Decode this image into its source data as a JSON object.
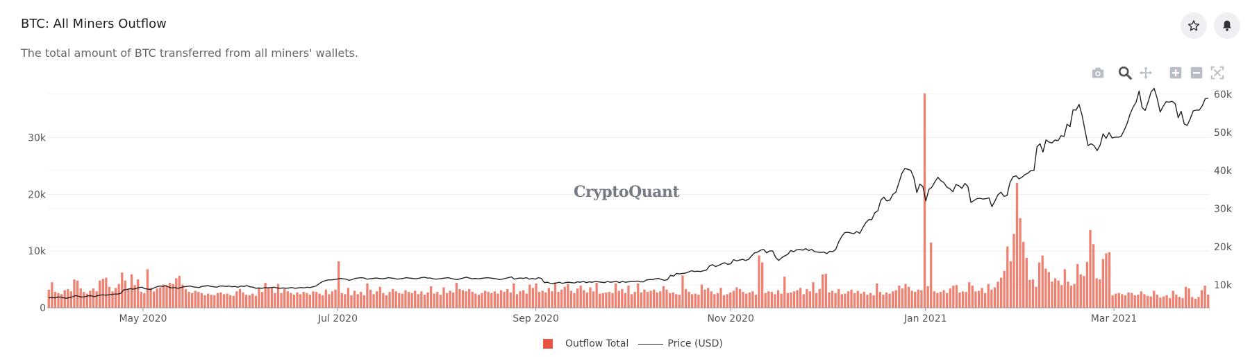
{
  "header": {
    "title": "BTC: All Miners Outflow",
    "subtitle": "The total amount of BTC transferred from all miners' wallets."
  },
  "watermark": "CryptoQuant",
  "actions": {
    "favorite_icon": "star-icon",
    "alert_icon": "bell-icon"
  },
  "modebar": [
    "camera-icon",
    "zoom-icon",
    "pan-icon",
    "zoom-in-icon",
    "zoom-out-icon",
    "autoscale-icon"
  ],
  "colors": {
    "bar": "#f08070",
    "legend_bar": "#e8543f",
    "line": "#222222",
    "grid": "#ececec"
  },
  "chart_data": {
    "type": "bar",
    "start_date": "2020-04-01",
    "end_date": "2021-03-31",
    "x_tick_labels": [
      "May 2020",
      "Jul 2020",
      "Sep 2020",
      "Nov 2020",
      "Jan 2021",
      "Mar 2021"
    ],
    "y_left": {
      "ticks": [
        0,
        10000,
        20000,
        30000
      ],
      "tick_labels": [
        "0",
        "10k",
        "20k",
        "30k"
      ],
      "range": [
        0,
        38000
      ]
    },
    "y_right": {
      "ticks": [
        10000,
        20000,
        30000,
        40000,
        50000,
        60000
      ],
      "tick_labels": [
        "10k",
        "20k",
        "30k",
        "40k",
        "50k",
        "60k"
      ],
      "range": [
        4000,
        60500
      ]
    },
    "series": [
      {
        "name": "Outflow Total",
        "type": "bar",
        "axis": "left",
        "color": "#f08070",
        "values": [
          3200,
          4500,
          2800,
          2600,
          2400,
          3100,
          3300,
          2900,
          5000,
          4800,
          3400,
          2800,
          2500,
          3000,
          3400,
          2900,
          4800,
          5100,
          5300,
          3700,
          2900,
          3500,
          4200,
          6200,
          4800,
          3300,
          5900,
          4000,
          5000,
          2800,
          2600,
          6800,
          3500,
          2900,
          3400,
          3600,
          4100,
          3800,
          4400,
          4200,
          5200,
          5600,
          4100,
          3300,
          2800,
          2600,
          3000,
          2800,
          2600,
          2200,
          2500,
          2300,
          2200,
          2600,
          2700,
          2400,
          2500,
          2200,
          2100,
          2900,
          3300,
          2700,
          2300,
          2200,
          2500,
          2100,
          3500,
          2800,
          4400,
          3400,
          3600,
          2600,
          4200,
          2600,
          3300,
          2900,
          2600,
          2300,
          2700,
          2400,
          2800,
          2600,
          2300,
          2900,
          2800,
          2500,
          2200,
          3200,
          2400,
          2900,
          3200,
          8200,
          2600,
          2400,
          3500,
          2200,
          3000,
          2400,
          2800,
          2200,
          4300,
          3200,
          2400,
          2900,
          3700,
          2600,
          2200,
          2800,
          3300,
          2900,
          2600,
          2500,
          3100,
          2800,
          2600,
          3000,
          2400,
          2900,
          2300,
          2700,
          3800,
          2500,
          2800,
          2300,
          3600,
          2600,
          3000,
          2700,
          4400,
          3300,
          3100,
          2900,
          3300,
          2800,
          2500,
          2300,
          2600,
          3000,
          2800,
          2600,
          2900,
          2500,
          3100,
          2800,
          3300,
          2700,
          4300,
          2400,
          2900,
          3100,
          2500,
          4100,
          3500,
          4300,
          2800,
          3000,
          2700,
          3500,
          2900,
          4500,
          2800,
          3200,
          3700,
          4200,
          3000,
          2600,
          3400,
          3900,
          3100,
          2700,
          3600,
          2900,
          4400,
          2500,
          2600,
          2700,
          2800,
          2600,
          4300,
          3000,
          3300,
          2600,
          3900,
          2400,
          2800,
          4300,
          2700,
          3200,
          2800,
          3000,
          3200,
          2700,
          2900,
          3800,
          3200,
          2600,
          2700,
          2400,
          2300,
          5700,
          3300,
          2800,
          2400,
          2500,
          2300,
          4100,
          3200,
          3500,
          2900,
          2400,
          2600,
          3500,
          2200,
          2400,
          2700,
          3000,
          3600,
          3300,
          2800,
          2500,
          2700,
          2900,
          2300,
          9200,
          8000,
          2600,
          2900,
          2800,
          2400,
          3100,
          2500,
          5500,
          2600,
          2700,
          2900,
          3100,
          3500,
          2400,
          3300,
          2900,
          4500,
          2600,
          3300,
          5900,
          6000,
          2700,
          3000,
          2600,
          3300,
          2400,
          2500,
          2900,
          3200,
          2600,
          3000,
          2500,
          2800,
          2300,
          2600,
          2200,
          4300,
          2800,
          2300,
          2700,
          2500,
          2900,
          3100,
          3900,
          3400,
          4200,
          3700,
          3000,
          2800,
          3200,
          3100,
          37800,
          3800,
          11500,
          2900,
          2600,
          2800,
          3100,
          2600,
          3400,
          3900,
          4000,
          2700,
          2900,
          2800,
          4500,
          3900,
          2900,
          3000,
          3500,
          2600,
          4200,
          3200,
          3600,
          4600,
          5300,
          6500,
          10800,
          8200,
          13000,
          22000,
          15800,
          11600,
          8800,
          4900,
          5000,
          3700,
          8000,
          9200,
          6900,
          6300,
          4600,
          5200,
          4800,
          4000,
          6800,
          4600,
          3900,
          4200,
          7700,
          5900,
          5600,
          8100,
          13700,
          11200,
          5200,
          5000,
          8600,
          9600,
          9800,
          2200,
          2500,
          2600,
          2400,
          2200,
          2700,
          2600,
          2200,
          2300,
          2900,
          2400,
          2100,
          2000,
          3000,
          2300,
          1800,
          2000,
          2200,
          1700,
          3000,
          2300,
          1900,
          1700,
          3700,
          3400,
          1900,
          1600,
          1900,
          3100,
          3900,
          2300
        ]
      },
      {
        "name": "Price (USD)",
        "type": "line",
        "axis": "right",
        "color": "#222222",
        "values": [
          6600,
          6700,
          6600,
          6800,
          6800,
          6600,
          6500,
          6700,
          6900,
          7200,
          7000,
          6800,
          6900,
          7100,
          7200,
          6900,
          7100,
          7300,
          7400,
          7300,
          7400,
          7500,
          7600,
          7600,
          7800,
          8700,
          8800,
          9000,
          8900,
          9000,
          9300,
          9400,
          9000,
          8900,
          8800,
          9200,
          9500,
          9700,
          9600,
          9800,
          9400,
          9200,
          9300,
          9100,
          9300,
          9500,
          9600,
          9700,
          9500,
          9400,
          9300,
          9600,
          9700,
          9800,
          9600,
          9500,
          9400,
          9700,
          9700,
          9600,
          9700,
          9500,
          9600,
          9400,
          9700,
          9600,
          9800,
          9500,
          9400,
          9100,
          9200,
          9100,
          9300,
          9200,
          9300,
          9400,
          9200,
          9100,
          9200,
          9100,
          9200,
          9300,
          9100,
          9200,
          9300,
          9200,
          9400,
          9300,
          9500,
          9700,
          10300,
          10800,
          11100,
          11300,
          11300,
          11400,
          11500,
          11700,
          11600,
          11500,
          11200,
          11400,
          11700,
          11800,
          11900,
          11800,
          11500,
          11600,
          11700,
          11800,
          11700,
          11600,
          11700,
          11900,
          11800,
          11700,
          11500,
          11600,
          11700,
          11900,
          11800,
          11700,
          11600,
          11700,
          11900,
          12000,
          11800,
          11800,
          11600,
          11500,
          11600,
          11700,
          11800,
          11900,
          11700,
          11500,
          11400,
          11600,
          11800,
          12000,
          11800,
          11600,
          11700,
          11600,
          11700,
          11800,
          11900,
          11800,
          11700,
          11600,
          11400,
          11500,
          11700,
          11900,
          12100,
          11500,
          11700,
          11800,
          11700,
          11900,
          11500,
          11700,
          11500,
          11900,
          11700,
          10600,
          10700,
          10400,
          10300,
          10500,
          10700,
          10400,
          10600,
          10700,
          10600,
          10500,
          10800,
          10700,
          10900,
          10600,
          10800,
          10700,
          10900,
          10800,
          10700,
          10600,
          10900,
          10700,
          10800,
          10900,
          10600,
          10900,
          10700,
          10800,
          10900,
          10900,
          11000,
          10800,
          10800,
          11300,
          11400,
          11400,
          11600,
          11700,
          11400,
          11200,
          11400,
          12500,
          12300,
          13000,
          12900,
          13000,
          13100,
          13400,
          13700,
          13500,
          13600,
          13500,
          13700,
          13900,
          15000,
          15300,
          14800,
          15100,
          15500,
          15800,
          15400,
          15500,
          16600,
          16300,
          16500,
          16700,
          16400,
          16700,
          17600,
          18400,
          18600,
          19100,
          19300,
          18400,
          18900,
          18900,
          17200,
          16400,
          17100,
          17600,
          18000,
          19000,
          18700,
          19200,
          19300,
          19100,
          19500,
          19000,
          19300,
          18700,
          18600,
          18500,
          18600,
          18200,
          18800,
          18700,
          19300,
          21300,
          22700,
          23700,
          23800,
          23600,
          23400,
          24000,
          23500,
          25000,
          26300,
          27100,
          27100,
          28900,
          29400,
          32200,
          33000,
          32000,
          32200,
          33700,
          34300,
          36700,
          39200,
          40500,
          40300,
          40000,
          38100,
          34200,
          36400,
          35800,
          32000,
          35000,
          35600,
          37000,
          38200,
          37300,
          36800,
          35600,
          35200,
          34400,
          36300,
          36000,
          35300,
          36600,
          35800,
          31600,
          32100,
          32600,
          32700,
          32500,
          32600,
          32800,
          30500,
          32000,
          33600,
          34300,
          33200,
          33400,
          36800,
          38300,
          38600,
          37800,
          38200,
          38900,
          39300,
          40000,
          40000,
          46200,
          47000,
          44800,
          48000,
          47400,
          47200,
          48000,
          47800,
          49100,
          48900,
          52100,
          51500,
          55900,
          55800,
          57300,
          54500,
          50400,
          46500,
          47000,
          46500,
          45200,
          46600,
          49600,
          48400,
          49900,
          48500,
          48700,
          48700,
          48900,
          50500,
          52300,
          54800,
          56600,
          57900,
          60800,
          56500,
          55700,
          58000,
          60600,
          61500,
          58900,
          55300,
          56800,
          58000,
          57900,
          58100,
          57500,
          53800,
          55500,
          52200,
          51800,
          53500,
          55600,
          55800,
          55800,
          56900,
          58800,
          58900
        ]
      }
    ],
    "legend": {
      "placement": "bottom-center"
    },
    "grid": true
  },
  "legend_labels": {
    "bars": "Outflow Total",
    "line": "Price (USD)"
  }
}
